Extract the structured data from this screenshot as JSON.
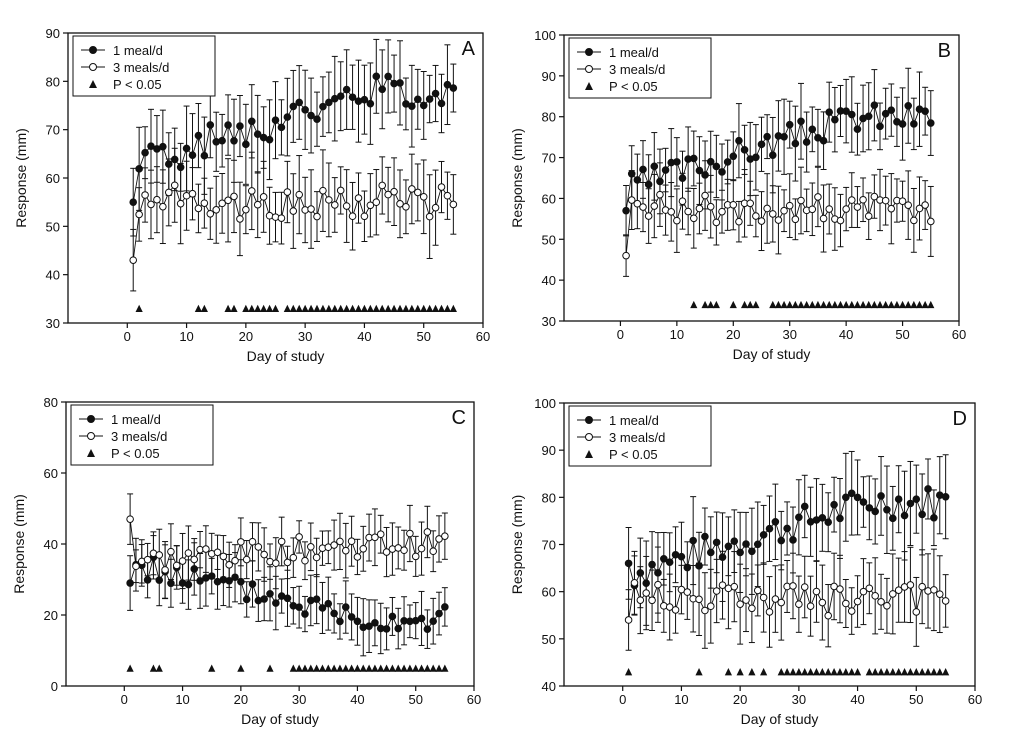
{
  "colors": {
    "axis": "#111111",
    "filled": "#111111",
    "open_fill": "#ffffff"
  },
  "chart_data": [
    {
      "type": "scatter",
      "panel_label": "A",
      "xlabel": "Day of study",
      "ylabel": "Response (mm)",
      "xlim": [
        -10,
        60
      ],
      "ylim": [
        30,
        90
      ],
      "xticks": [
        0,
        10,
        20,
        30,
        40,
        50,
        60
      ],
      "yticks": [
        30,
        40,
        50,
        60,
        70,
        80,
        90
      ],
      "legend": [
        "1 meal/d",
        "3 meals/d",
        "P < 0.05"
      ],
      "legend_position": "top-left",
      "series": [
        {
          "name": "1 meal/d",
          "marker": "filled-circle",
          "start": 63,
          "end": 78,
          "first": 55,
          "err": 6.5,
          "seed": 1
        },
        {
          "name": "3 meals/d",
          "marker": "open-circle",
          "start": 55,
          "end": 55,
          "first": 43,
          "err": 6.5,
          "seed": 2
        }
      ],
      "significance_y": 33,
      "significant_days": [
        2,
        12,
        13,
        17,
        18,
        20,
        21,
        22,
        23,
        24,
        25,
        27,
        28,
        29,
        30,
        31,
        32,
        33,
        34,
        35,
        36,
        37,
        38,
        39,
        40,
        41,
        42,
        43,
        44,
        45,
        46,
        47,
        48,
        49,
        50,
        51,
        52,
        53,
        54,
        55
      ]
    },
    {
      "type": "scatter",
      "panel_label": "B",
      "xlabel": "Day of study",
      "ylabel": "Response (mm)",
      "xlim": [
        -10,
        60
      ],
      "ylim": [
        30,
        100
      ],
      "xticks": [
        0,
        10,
        20,
        30,
        40,
        50,
        60
      ],
      "yticks": [
        30,
        40,
        50,
        60,
        70,
        80,
        90,
        100
      ],
      "legend": [
        "1 meal/d",
        "3 meals/d",
        "P < 0.05"
      ],
      "legend_position": "top-left",
      "series": [
        {
          "name": "1 meal/d",
          "marker": "filled-circle",
          "start": 63,
          "end": 80,
          "first": 57,
          "err": 7,
          "seed": 3
        },
        {
          "name": "3 meals/d",
          "marker": "open-circle",
          "start": 58,
          "end": 57,
          "first": 46,
          "err": 6.5,
          "seed": 4
        }
      ],
      "significance_y": 34,
      "significant_days": [
        13,
        15,
        16,
        17,
        20,
        22,
        23,
        24,
        27,
        28,
        29,
        30,
        31,
        32,
        33,
        34,
        35,
        36,
        37,
        38,
        39,
        40,
        41,
        42,
        43,
        44,
        45,
        46,
        47,
        48,
        49,
        50,
        51,
        52,
        53,
        54,
        55
      ]
    },
    {
      "type": "scatter",
      "panel_label": "C",
      "xlabel": "Day of study",
      "ylabel": "Response (mm)",
      "xlim": [
        -10,
        60
      ],
      "ylim": [
        0,
        80
      ],
      "xticks": [
        0,
        10,
        20,
        30,
        40,
        50,
        60
      ],
      "yticks": [
        0,
        20,
        40,
        60,
        80
      ],
      "legend": [
        "1 meal/d",
        "3 meals/d",
        "P < 0.05"
      ],
      "legend_position": "top-left",
      "series": [
        {
          "name": "1 meal/d",
          "marker": "filled-circle",
          "start": 34,
          "end": 19,
          "first": 29,
          "err": 6,
          "seed": 5
        },
        {
          "name": "3 meals/d",
          "marker": "open-circle",
          "start": 35,
          "end": 40,
          "first": 47,
          "err": 6,
          "seed": 6
        }
      ],
      "significance_y": 5,
      "significant_days": [
        1,
        5,
        6,
        15,
        20,
        25,
        29,
        30,
        31,
        32,
        33,
        34,
        35,
        36,
        37,
        38,
        39,
        40,
        41,
        42,
        43,
        44,
        45,
        46,
        47,
        48,
        49,
        50,
        51,
        52,
        53,
        54,
        55
      ]
    },
    {
      "type": "scatter",
      "panel_label": "D",
      "xlabel": "Day of study",
      "ylabel": "Response (mm)",
      "xlim": [
        -10,
        60
      ],
      "ylim": [
        40,
        100
      ],
      "xticks": [
        0,
        10,
        20,
        30,
        40,
        50,
        60
      ],
      "yticks": [
        40,
        50,
        60,
        70,
        80,
        90,
        100
      ],
      "legend": [
        "1 meal/d",
        "3 meals/d",
        "P < 0.05"
      ],
      "legend_position": "top-left",
      "series": [
        {
          "name": "1 meal/d",
          "marker": "filled-circle",
          "start": 64,
          "end": 79,
          "first": 66,
          "err": 7,
          "seed": 7
        },
        {
          "name": "3 meals/d",
          "marker": "open-circle",
          "start": 59,
          "end": 58,
          "first": 54,
          "err": 6.5,
          "seed": 8
        }
      ],
      "significance_y": 43,
      "significant_days": [
        1,
        13,
        18,
        20,
        22,
        24,
        27,
        28,
        29,
        30,
        31,
        32,
        33,
        34,
        35,
        36,
        37,
        38,
        39,
        40,
        42,
        43,
        44,
        45,
        46,
        47,
        48,
        49,
        50,
        51,
        52,
        53,
        54,
        55
      ]
    }
  ]
}
